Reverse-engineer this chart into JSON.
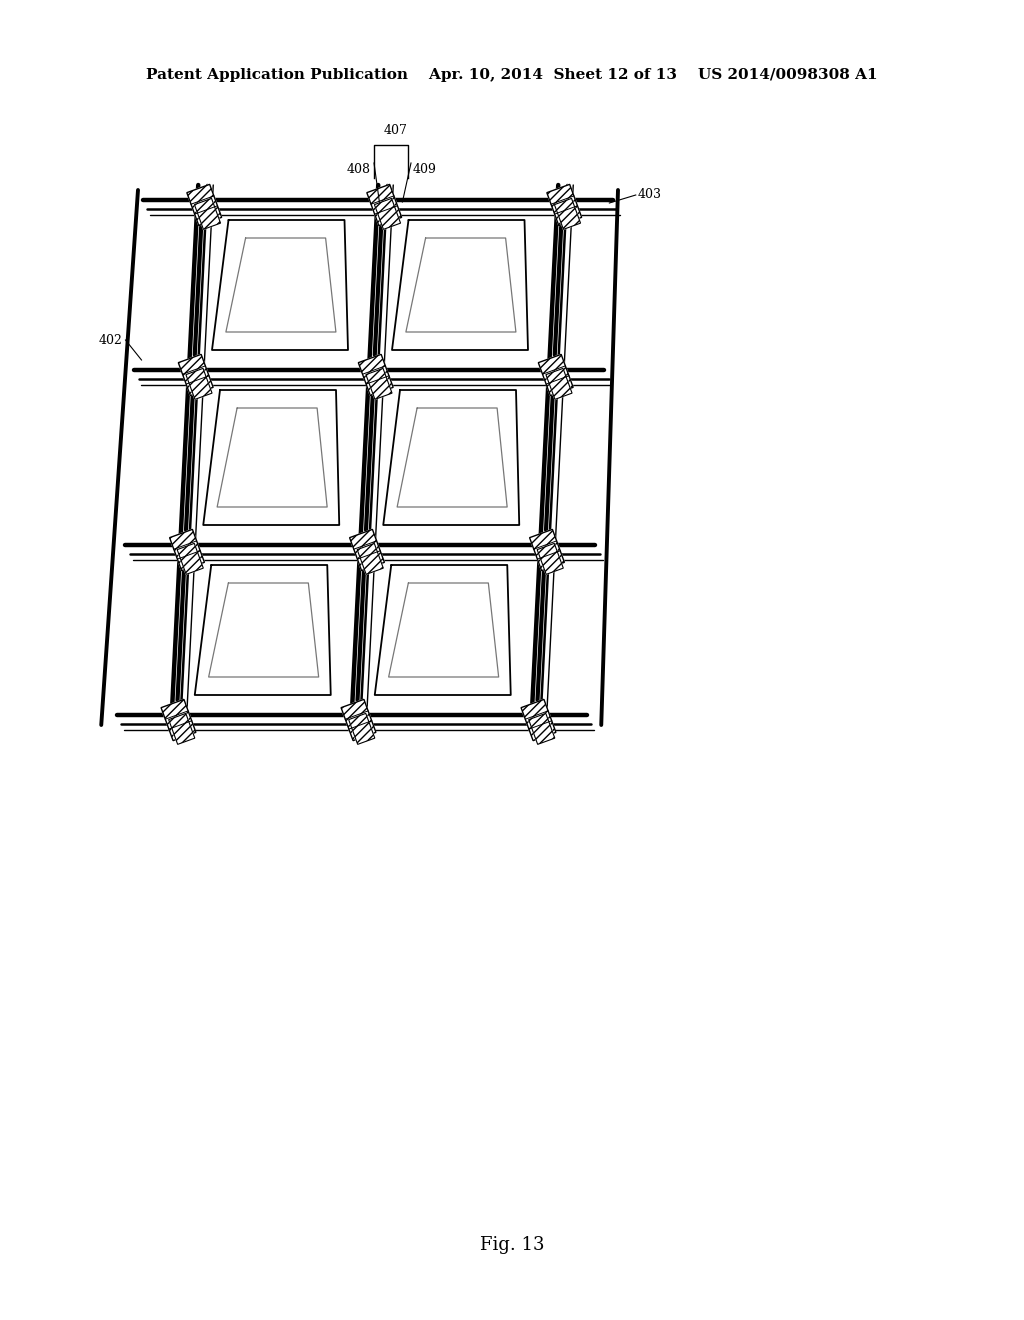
{
  "bg_color": "#ffffff",
  "line_color": "#000000",
  "hatch_color": "#555555",
  "title_text": "Patent Application Publication    Apr. 10, 2014  Sheet 12 of 13    US 2014/0098308 A1",
  "fig_label": "Fig. 13",
  "ref_402": "402",
  "ref_403": "403",
  "ref_407": "407",
  "ref_408": "408",
  "ref_409": "409",
  "title_fontsize": 11,
  "fig_label_fontsize": 13
}
